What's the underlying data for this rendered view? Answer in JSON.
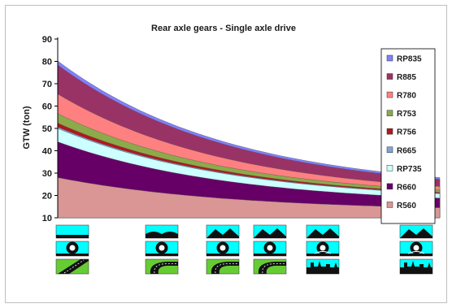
{
  "chart_data": {
    "type": "area",
    "stacked": true,
    "title": "Rear axle gears - Single axle drive",
    "xlabel": "",
    "ylabel": "GTW (ton)",
    "ylim": [
      10,
      90
    ],
    "yticks": [
      10,
      20,
      30,
      40,
      50,
      60,
      70,
      80,
      90
    ],
    "x": [
      0,
      1
    ],
    "series_interpolation": "exponential-decay",
    "legend_position": "right",
    "series": [
      {
        "name": "R560",
        "color": "#d99694",
        "values": [
          28,
          14.5
        ]
      },
      {
        "name": "R660",
        "color": "#660066",
        "values": [
          44,
          18.8
        ]
      },
      {
        "name": "RP735",
        "color": "#ccffff",
        "values": [
          50,
          20.8
        ]
      },
      {
        "name": "R665",
        "color": "#7da6d6",
        "values": [
          50.6,
          21
        ]
      },
      {
        "name": "R756",
        "color": "#b2181b",
        "values": [
          52.4,
          21.4
        ]
      },
      {
        "name": "R753",
        "color": "#8caa4a",
        "values": [
          56.6,
          22.4
        ]
      },
      {
        "name": "R780",
        "color": "#ff8080",
        "values": [
          65.4,
          24
        ]
      },
      {
        "name": "R885",
        "color": "#993366",
        "values": [
          78.4,
          27.2
        ]
      },
      {
        "name": "RP835",
        "color": "#8080ff",
        "values": [
          80.2,
          28
        ]
      }
    ]
  },
  "road_icons": [
    {
      "terrain": "flat",
      "tyre": "good",
      "road": "straight"
    },
    {
      "terrain": "hills",
      "tyre": "good",
      "road": "curve"
    },
    {
      "terrain": "mountain",
      "tyre": "good",
      "road": "curve"
    },
    {
      "terrain": "mountain",
      "tyre": "good",
      "road": "curve"
    },
    {
      "terrain": "mountain",
      "tyre": "poor",
      "road": "city"
    },
    {
      "terrain": "mountain",
      "tyre": "poor",
      "road": "city"
    }
  ],
  "colors": {
    "sky": "#00ffff",
    "grass": "#66cc33",
    "ground": "#111111",
    "frame": "#bfbfbf"
  }
}
